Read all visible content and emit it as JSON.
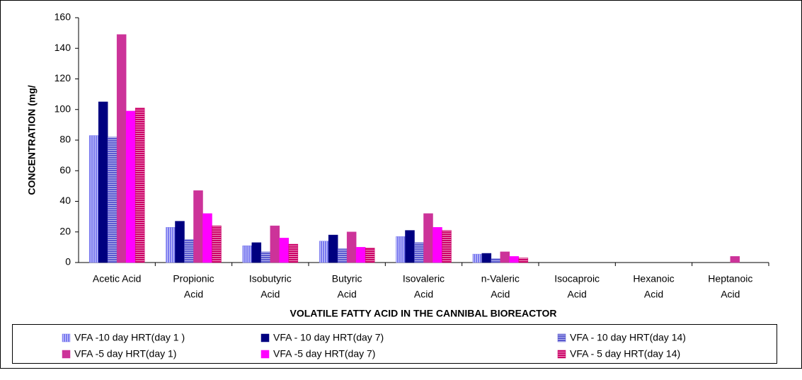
{
  "chart_data": {
    "type": "bar",
    "y_label": "CONCENTRATION (mg/",
    "x_label": "VOLATILE FATTY ACID IN THE CANNIBAL BIOREACTOR",
    "categories": [
      [
        "Acetic Acid"
      ],
      [
        "Propionic",
        "Acid"
      ],
      [
        "Isobutyric",
        "Acid"
      ],
      [
        "Butyric",
        "Acid"
      ],
      [
        "Isovaleric",
        "Acid"
      ],
      [
        "n-Valeric",
        "Acid"
      ],
      [
        "Isocaproic",
        "Acid"
      ],
      [
        "Hexanoic",
        "Acid"
      ],
      [
        "Heptanoic",
        "Acid"
      ]
    ],
    "series": [
      {
        "name": "VFA -10 day HRT(day 1 )",
        "color": "#7b7bf0",
        "pattern": "vertical",
        "values": [
          83,
          23,
          11,
          14,
          17,
          5.5,
          0,
          0,
          0
        ]
      },
      {
        "name": "VFA - 10 day HRT(day 7)",
        "color": "#000080",
        "pattern": "solid",
        "values": [
          105,
          27,
          13,
          18,
          21,
          6,
          0,
          0,
          0
        ]
      },
      {
        "name": "VFA - 10 day HRT(day 14)",
        "color": "#5a5ad0",
        "pattern": "horizontal",
        "values": [
          82,
          15,
          7,
          9,
          13,
          2.5,
          0,
          0,
          0
        ]
      },
      {
        "name": "VFA -5 day HRT(day 1)",
        "color": "#cc3399",
        "pattern": "solid",
        "values": [
          149,
          47,
          24,
          20,
          32,
          7,
          0,
          0,
          4
        ]
      },
      {
        "name": "VFA -5 day HRT(day 7)",
        "color": "#ff00ff",
        "pattern": "solid",
        "values": [
          99,
          32,
          16,
          10,
          23,
          4,
          0,
          0,
          0
        ]
      },
      {
        "name": "VFA - 5 day HRT(day 14)",
        "color": "#cc0066",
        "pattern": "horizontal",
        "values": [
          101,
          24,
          12,
          9.5,
          21,
          3,
          0,
          0,
          0
        ]
      }
    ],
    "ylim": [
      0,
      160
    ],
    "yticks": [
      0,
      20,
      40,
      60,
      80,
      100,
      120,
      140,
      160
    ]
  }
}
